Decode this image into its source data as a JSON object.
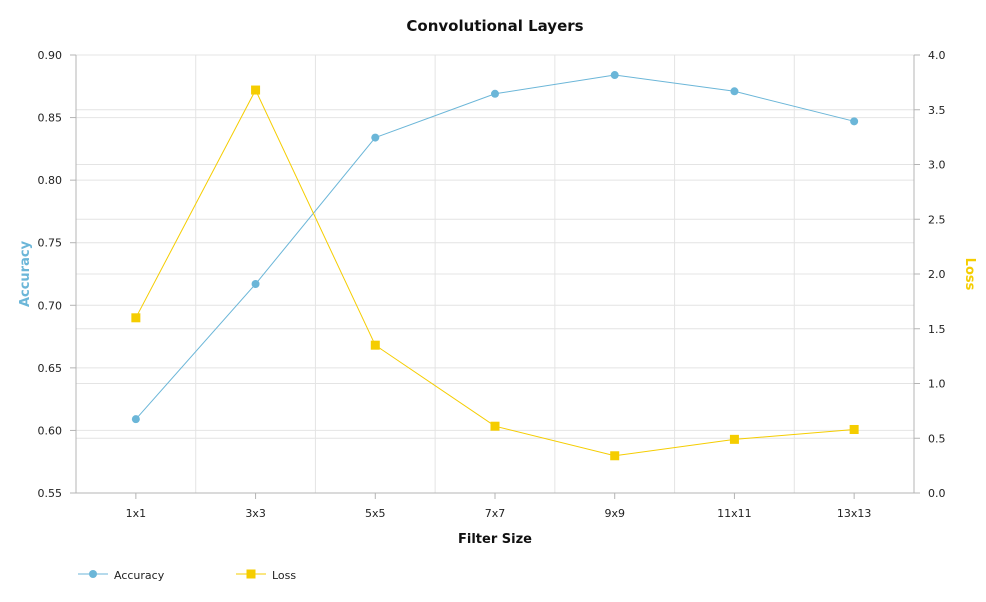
{
  "colors": {
    "accuracy": "#6bb6d8",
    "loss": "#f5cd00",
    "grid": "#e4e4e4",
    "axis": "#b4b4b4",
    "plot_bg": "#ffffff"
  },
  "chart_data": {
    "type": "line",
    "title": "Convolutional Layers",
    "xlabel": "Filter Size",
    "categories": [
      "1x1",
      "3x3",
      "5x5",
      "7x7",
      "9x9",
      "11x11",
      "13x13"
    ],
    "y_left": {
      "label": "Accuracy",
      "range": [
        0.55,
        0.9
      ],
      "ticks": [
        "0.55",
        "0.60",
        "0.65",
        "0.70",
        "0.75",
        "0.80",
        "0.85",
        "0.90"
      ]
    },
    "y_right": {
      "label": "Loss",
      "range": [
        0,
        4
      ],
      "ticks": [
        "0.0",
        "0.5",
        "1.0",
        "1.5",
        "2.0",
        "2.5",
        "3.0",
        "3.5",
        "4.0"
      ]
    },
    "series": [
      {
        "name": "Accuracy",
        "axis": "left",
        "marker": "circle",
        "values": [
          0.609,
          0.717,
          0.834,
          0.869,
          0.884,
          0.871,
          0.847
        ]
      },
      {
        "name": "Loss",
        "axis": "right",
        "marker": "square",
        "values": [
          1.6,
          3.68,
          1.35,
          0.61,
          0.34,
          0.49,
          0.58
        ]
      }
    ],
    "grid": true,
    "legend_position": "bottom-left"
  }
}
